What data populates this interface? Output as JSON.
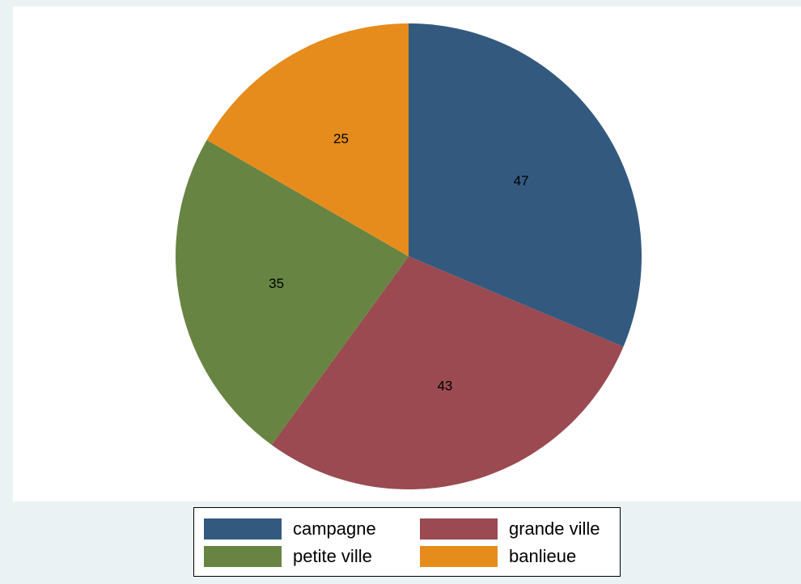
{
  "chart_data": {
    "type": "pie",
    "title": "",
    "categories": [
      "campagne",
      "grande ville",
      "petite ville",
      "banlieue"
    ],
    "values": [
      47,
      43,
      35,
      25
    ],
    "colors": [
      "#335a7e",
      "#9a4a50",
      "#688443",
      "#e68c1c"
    ],
    "start_angle_deg": 90,
    "direction": "clockwise",
    "show_value_labels": true,
    "legend": {
      "position": "bottom",
      "columns": 2,
      "items": [
        {
          "label": "campagne",
          "color": "#335a7e"
        },
        {
          "label": "grande ville",
          "color": "#9a4a50"
        },
        {
          "label": "petite ville",
          "color": "#688443"
        },
        {
          "label": "banlieue",
          "color": "#e68c1c"
        }
      ]
    }
  }
}
